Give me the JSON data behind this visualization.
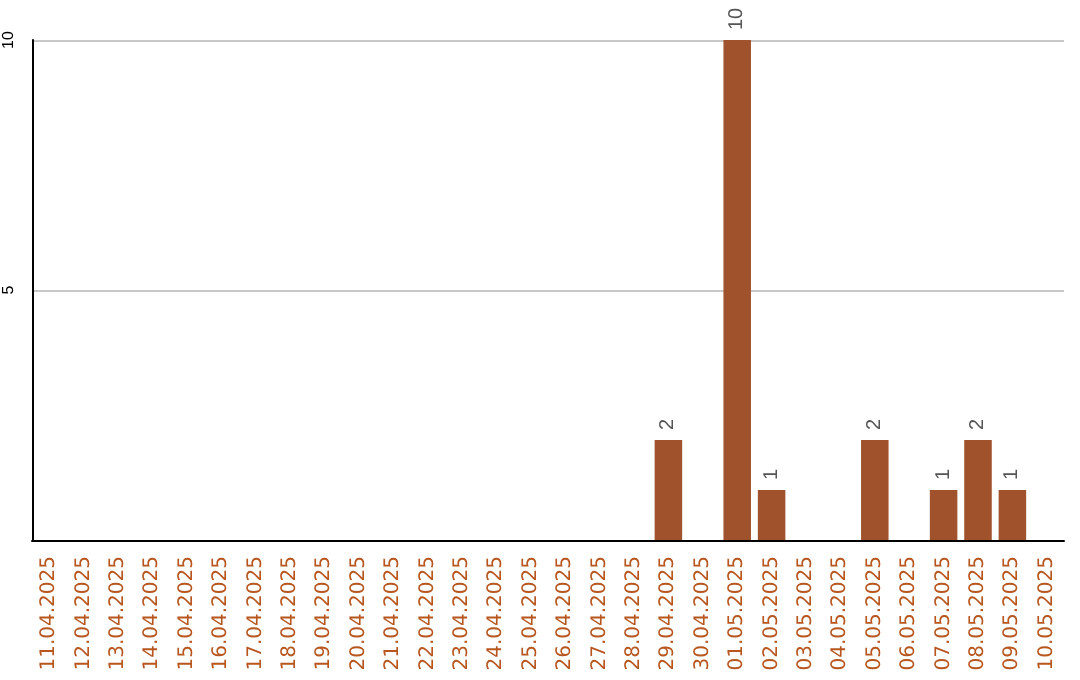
{
  "chart_data": {
    "type": "bar",
    "categories": [
      "11.04.2025",
      "12.04.2025",
      "13.04.2025",
      "14.04.2025",
      "15.04.2025",
      "16.04.2025",
      "17.04.2025",
      "18.04.2025",
      "19.04.2025",
      "20.04.2025",
      "21.04.2025",
      "22.04.2025",
      "23.04.2025",
      "24.04.2025",
      "25.04.2025",
      "26.04.2025",
      "27.04.2025",
      "28.04.2025",
      "29.04.2025",
      "30.04.2025",
      "01.05.2025",
      "02.05.2025",
      "03.05.2025",
      "04.05.2025",
      "05.05.2025",
      "06.05.2025",
      "07.05.2025",
      "08.05.2025",
      "09.05.2025",
      "10.05.2025"
    ],
    "values": [
      0,
      0,
      0,
      0,
      0,
      0,
      0,
      0,
      0,
      0,
      0,
      0,
      0,
      0,
      0,
      0,
      0,
      0,
      2,
      0,
      10,
      1,
      0,
      0,
      2,
      0,
      1,
      2,
      1,
      0
    ],
    "value_labels": [
      null,
      null,
      null,
      null,
      null,
      null,
      null,
      null,
      null,
      null,
      null,
      null,
      null,
      null,
      null,
      null,
      null,
      null,
      "2",
      null,
      "10",
      "1",
      null,
      null,
      "2",
      null,
      "1",
      "2",
      "1",
      null
    ],
    "color": "#a0522d",
    "ylim": [
      0,
      10
    ],
    "yticks": [
      {
        "value": 0,
        "label": null
      },
      5,
      10
    ],
    "grid": "y"
  }
}
